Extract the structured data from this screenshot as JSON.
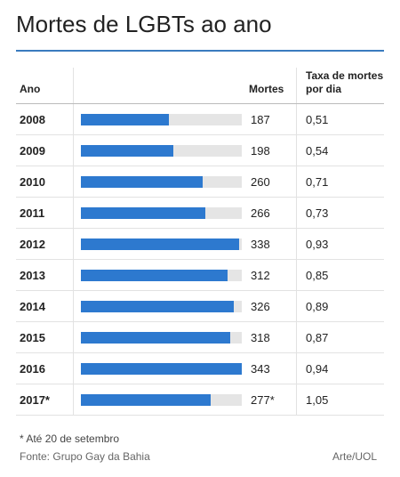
{
  "chart_data": {
    "type": "bar",
    "title": "Mortes de LGBTs ao ano",
    "columns": [
      "Ano",
      "Mortes",
      "Taxa de mortes por dia"
    ],
    "categories": [
      "2008",
      "2009",
      "2010",
      "2011",
      "2012",
      "2013",
      "2014",
      "2015",
      "2016",
      "2017*"
    ],
    "values": [
      187,
      198,
      260,
      266,
      338,
      312,
      326,
      318,
      343,
      277
    ],
    "value_labels": [
      "187",
      "198",
      "260",
      "266",
      "338",
      "312",
      "326",
      "318",
      "343",
      "277*"
    ],
    "rates": [
      "0,51",
      "0,54",
      "0,71",
      "0,73",
      "0,93",
      "0,85",
      "0,89",
      "0,87",
      "0,94",
      "1,05"
    ],
    "color": "#2d79cf",
    "xlim": [
      0,
      343
    ],
    "footnote": "* Até 20 de setembro",
    "source": "Fonte: Grupo Gay da Bahia",
    "credit": "Arte/UOL"
  }
}
